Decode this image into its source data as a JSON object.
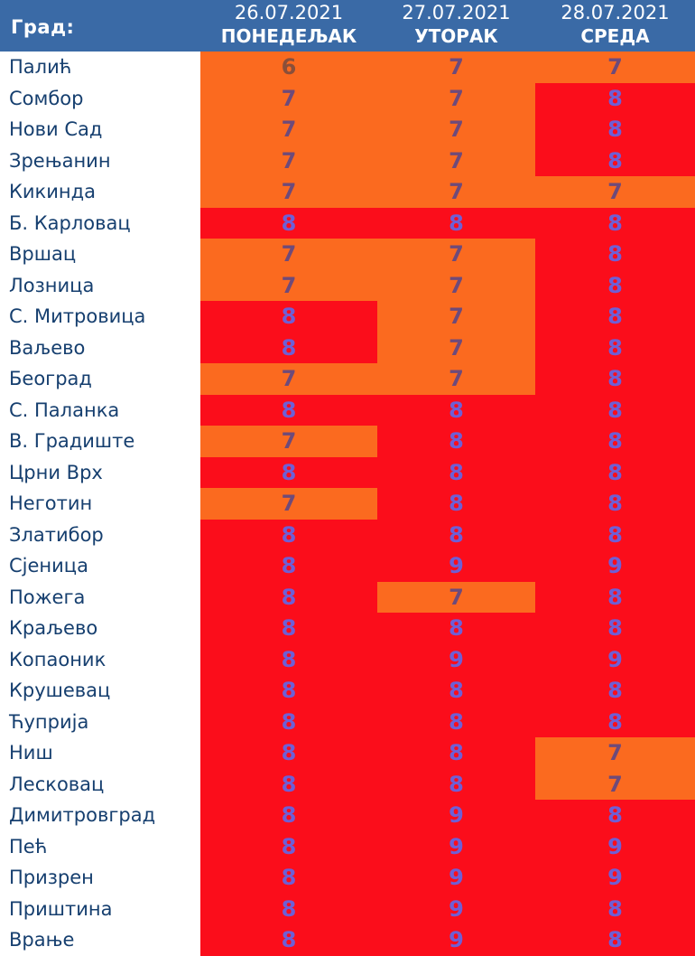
{
  "header": {
    "city_label": "Град:",
    "days": [
      {
        "date": "26.07.2021",
        "name": "ПОНЕДЕЉАК"
      },
      {
        "date": "27.07.2021",
        "name": "УТОРАК"
      },
      {
        "date": "28.07.2021",
        "name": "СРЕДА"
      }
    ]
  },
  "rows": [
    {
      "city": "Палић",
      "v": [
        "6",
        "7",
        "7"
      ]
    },
    {
      "city": "Сомбор",
      "v": [
        "7",
        "7",
        "8"
      ]
    },
    {
      "city": "Нови Сад",
      "v": [
        "7",
        "7",
        "8"
      ]
    },
    {
      "city": "Зрењанин",
      "v": [
        "7",
        "7",
        "8"
      ]
    },
    {
      "city": "Кикинда",
      "v": [
        "7",
        "7",
        "7"
      ]
    },
    {
      "city": "Б. Карловац",
      "v": [
        "8",
        "8",
        "8"
      ]
    },
    {
      "city": "Вршац",
      "v": [
        "7",
        "7",
        "8"
      ]
    },
    {
      "city": "Лозница",
      "v": [
        "7",
        "7",
        "8"
      ]
    },
    {
      "city": "С. Митровица",
      "v": [
        "8",
        "7",
        "8"
      ]
    },
    {
      "city": "Ваљево",
      "v": [
        "8",
        "7",
        "8"
      ]
    },
    {
      "city": "Београд",
      "v": [
        "7",
        "7",
        "8"
      ]
    },
    {
      "city": "С. Паланка",
      "v": [
        "8",
        "8",
        "8"
      ]
    },
    {
      "city": "В. Градиште",
      "v": [
        "7",
        "8",
        "8"
      ]
    },
    {
      "city": "Црни Врх",
      "v": [
        "8",
        "8",
        "8"
      ]
    },
    {
      "city": "Неготин",
      "v": [
        "7",
        "8",
        "8"
      ]
    },
    {
      "city": "Златибор",
      "v": [
        "8",
        "8",
        "8"
      ]
    },
    {
      "city": "Сјеница",
      "v": [
        "8",
        "9",
        "9"
      ]
    },
    {
      "city": "Пожега",
      "v": [
        "8",
        "7",
        "8"
      ]
    },
    {
      "city": "Краљево",
      "v": [
        "8",
        "8",
        "8"
      ]
    },
    {
      "city": "Копаоник",
      "v": [
        "8",
        "9",
        "9"
      ]
    },
    {
      "city": "Крушевац",
      "v": [
        "8",
        "8",
        "8"
      ]
    },
    {
      "city": "Ћуприја",
      "v": [
        "8",
        "8",
        "8"
      ]
    },
    {
      "city": "Ниш",
      "v": [
        "8",
        "8",
        "7"
      ]
    },
    {
      "city": "Лесковац",
      "v": [
        "8",
        "8",
        "7"
      ]
    },
    {
      "city": "Димитровград",
      "v": [
        "8",
        "9",
        "8"
      ]
    },
    {
      "city": "Пећ",
      "v": [
        "8",
        "9",
        "9"
      ]
    },
    {
      "city": "Призрен",
      "v": [
        "8",
        "9",
        "9"
      ]
    },
    {
      "city": "Приштина",
      "v": [
        "8",
        "9",
        "8"
      ]
    },
    {
      "city": "Врање",
      "v": [
        "8",
        "9",
        "8"
      ]
    }
  ],
  "colors": {
    "header_bg": "#3a6aa6",
    "moderate_high": "#fb6a1f",
    "very_high": "#fb0d1b"
  }
}
